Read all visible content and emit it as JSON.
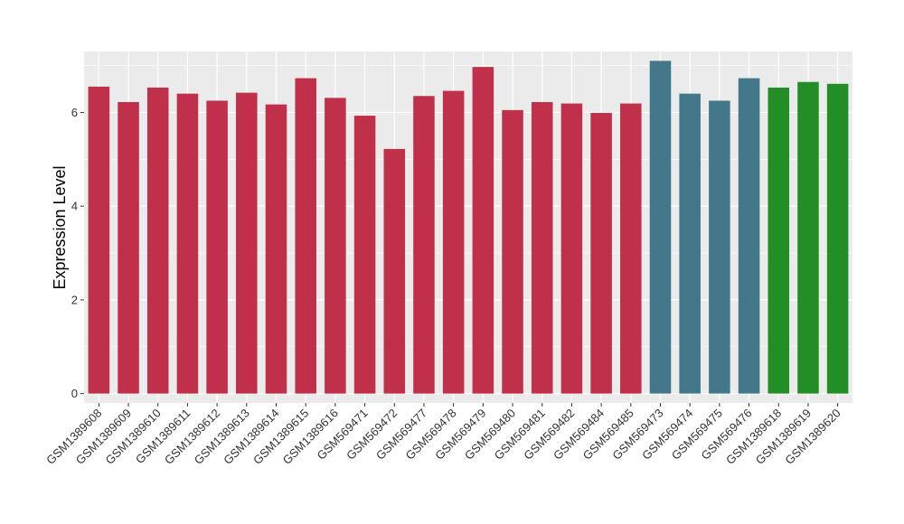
{
  "chart_data": {
    "type": "bar",
    "title": "",
    "xlabel": "",
    "ylabel": "Expression Level",
    "ylim": [
      -0.2,
      7.3
    ],
    "yticks": [
      0,
      2,
      4,
      6
    ],
    "grid": true,
    "categories": [
      "GSM1389608",
      "GSM1389609",
      "GSM1389610",
      "GSM1389611",
      "GSM1389612",
      "GSM1389613",
      "GSM1389614",
      "GSM1389615",
      "GSM1389616",
      "GSM569471",
      "GSM569472",
      "GSM569477",
      "GSM569478",
      "GSM569479",
      "GSM569480",
      "GSM569481",
      "GSM569482",
      "GSM569484",
      "GSM569485",
      "GSM569473",
      "GSM569474",
      "GSM569475",
      "GSM569476",
      "GSM1389618",
      "GSM1389619",
      "GSM1389620"
    ],
    "values": [
      6.55,
      6.22,
      6.53,
      6.4,
      6.25,
      6.42,
      6.17,
      6.73,
      6.31,
      5.93,
      5.22,
      6.35,
      6.46,
      6.97,
      6.05,
      6.22,
      6.19,
      5.99,
      6.19,
      7.1,
      6.4,
      6.25,
      6.73,
      6.53,
      6.65,
      6.61
    ],
    "colors": [
      "#C0304A",
      "#C0304A",
      "#C0304A",
      "#C0304A",
      "#C0304A",
      "#C0304A",
      "#C0304A",
      "#C0304A",
      "#C0304A",
      "#C0304A",
      "#C0304A",
      "#C0304A",
      "#C0304A",
      "#C0304A",
      "#C0304A",
      "#C0304A",
      "#C0304A",
      "#C0304A",
      "#C0304A",
      "#42788A",
      "#42788A",
      "#42788A",
      "#42788A",
      "#248E26",
      "#248E26",
      "#248E26"
    ],
    "panel_background": "#EBEBEB",
    "gridline_color": "#FFFFFF"
  }
}
